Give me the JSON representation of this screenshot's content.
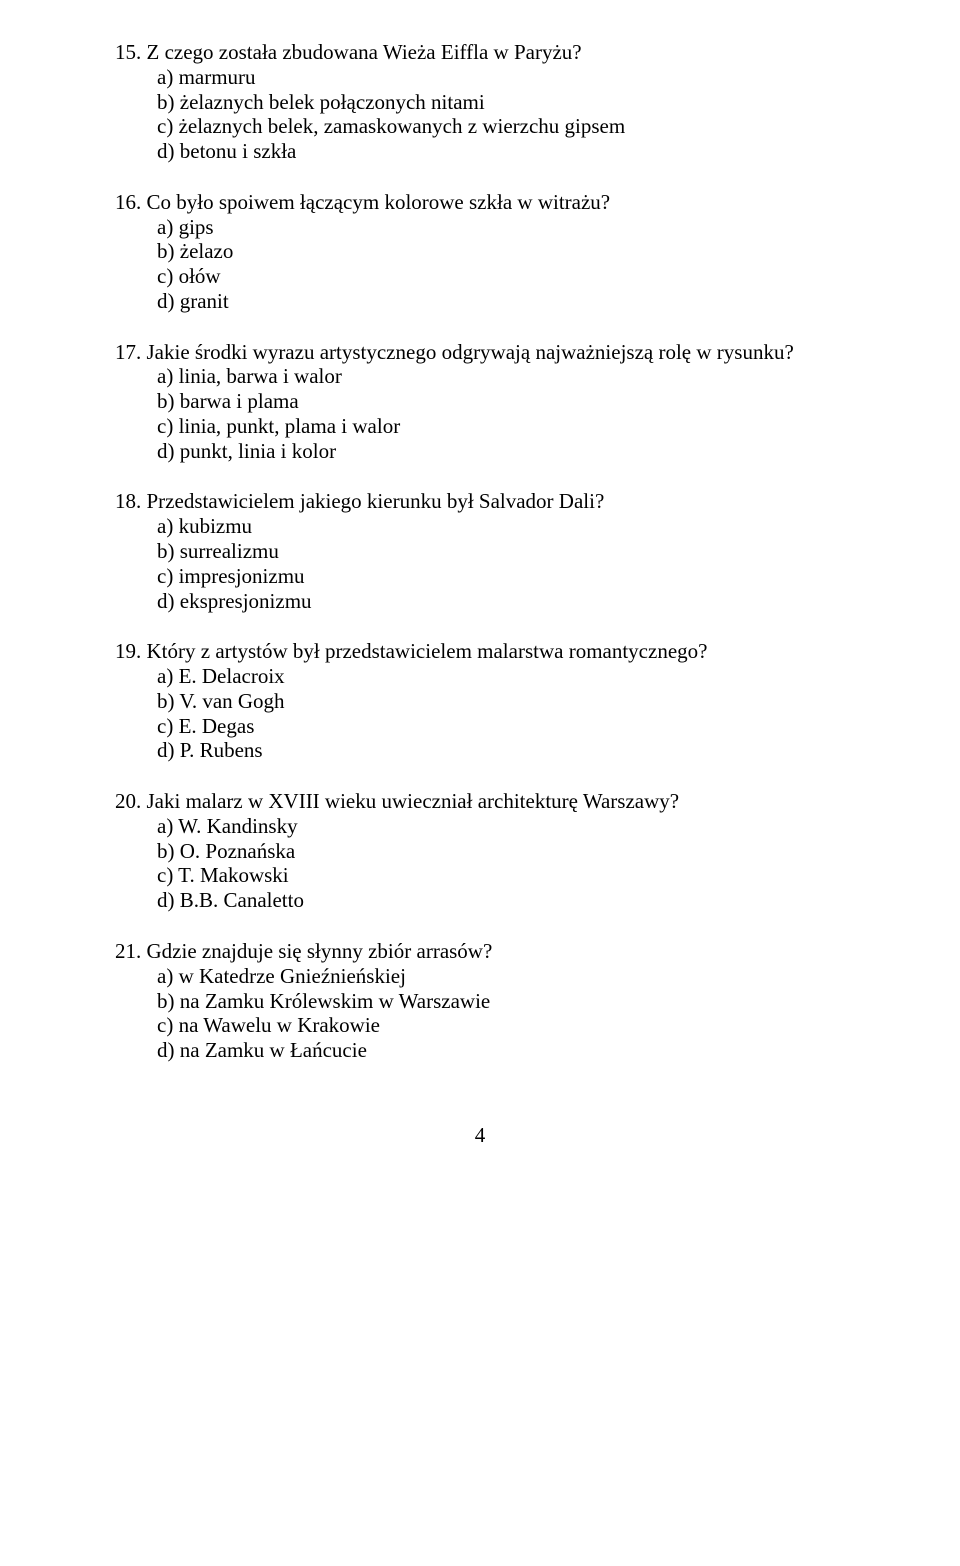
{
  "questions": [
    {
      "num": "15.",
      "text": "Z czego została zbudowana Wieża Eiffla w Paryżu?",
      "answers": [
        "a) marmuru",
        "b) żelaznych belek połączonych nitami",
        "c) żelaznych belek, zamaskowanych z wierzchu gipsem",
        "d) betonu i szkła"
      ]
    },
    {
      "num": "16.",
      "text": "Co było spoiwem łączącym kolorowe szkła w witrażu?",
      "answers": [
        "a) gips",
        "b) żelazo",
        "c) ołów",
        "d) granit"
      ]
    },
    {
      "num": "17.",
      "text": "Jakie środki wyrazu artystycznego odgrywają najważniejszą rolę w rysunku?",
      "answers": [
        "a) linia, barwa i walor",
        "b) barwa i plama",
        "c) linia, punkt, plama i walor",
        "d) punkt, linia i kolor"
      ]
    },
    {
      "num": "18.",
      "text": "Przedstawicielem jakiego kierunku był Salvador Dali?",
      "answers": [
        "a) kubizmu",
        "b) surrealizmu",
        "c) impresjonizmu",
        "d) ekspresjonizmu"
      ]
    },
    {
      "num": "19.",
      "text": "Który z artystów był przedstawicielem malarstwa romantycznego?",
      "answers": [
        "a) E. Delacroix",
        "b) V. van Gogh",
        "c) E. Degas",
        "d) P. Rubens"
      ]
    },
    {
      "num": "20.",
      "text": "Jaki malarz w XVIII wieku uwieczniał architekturę Warszawy?",
      "answers": [
        "a) W. Kandinsky",
        "b) O. Poznańska",
        "c) T. Makowski",
        "d) B.B. Canaletto"
      ]
    },
    {
      "num": "21.",
      "text": "Gdzie znajduje się słynny zbiór arrasów?",
      "answers": [
        "a) w Katedrze Gnieźnieńskiej",
        "b) na Zamku Królewskim w Warszawie",
        "c) na Wawelu w Krakowie",
        "d) na Zamku w Łańcucie"
      ]
    }
  ],
  "pageNumber": "4"
}
